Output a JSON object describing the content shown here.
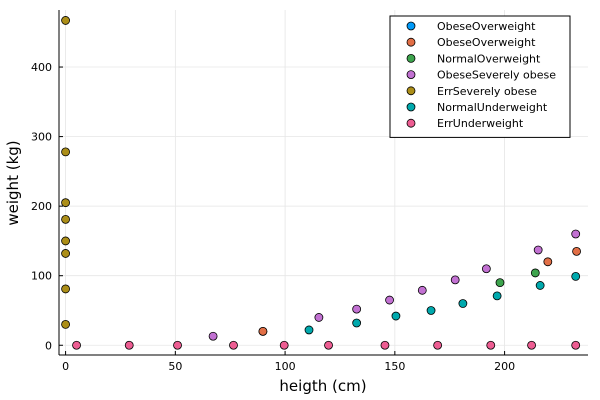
{
  "chart_data": {
    "type": "scatter",
    "title": "",
    "xlabel": "heigth (cm)",
    "ylabel": "weight (kg)",
    "xlim": [
      -3,
      238
    ],
    "ylim": [
      -14,
      482
    ],
    "xticks": [
      0,
      50,
      100,
      150,
      200
    ],
    "yticks": [
      0,
      100,
      200,
      300,
      400
    ],
    "grid": true,
    "legend_position": "top-right",
    "series": [
      {
        "name": "ObeseOverweight",
        "color": "#009af9",
        "points": [
          [
            89.9,
            20
          ]
        ]
      },
      {
        "name": "ObeseOverweight",
        "color": "#e26f46",
        "points": [
          [
            89.9,
            20
          ],
          [
            219.7,
            120
          ],
          [
            232.8,
            135
          ]
        ]
      },
      {
        "name": "NormalOverweight",
        "color": "#3da44d",
        "points": [
          [
            197.9,
            90
          ],
          [
            214.0,
            104
          ]
        ]
      },
      {
        "name": "ObeseSeverely obese",
        "color": "#c271d2",
        "points": [
          [
            67.2,
            13
          ],
          [
            115.4,
            40
          ],
          [
            132.6,
            52
          ],
          [
            147.6,
            65
          ],
          [
            162.5,
            79
          ],
          [
            177.5,
            94
          ],
          [
            191.7,
            110
          ],
          [
            215.3,
            137
          ],
          [
            232.4,
            160
          ]
        ]
      },
      {
        "name": "ErrSeverely obese",
        "color": "#ac8e18",
        "points": [
          [
            0,
            467
          ],
          [
            0,
            278
          ],
          [
            0,
            205
          ],
          [
            0,
            181
          ],
          [
            0,
            150
          ],
          [
            0,
            132
          ],
          [
            0,
            81
          ],
          [
            0,
            30
          ]
        ]
      },
      {
        "name": "NormalUnderweight",
        "color": "#00a9ad",
        "points": [
          [
            110.9,
            22
          ],
          [
            132.6,
            32
          ],
          [
            150.5,
            42
          ],
          [
            166.5,
            50
          ],
          [
            181.0,
            60
          ],
          [
            196.6,
            71
          ],
          [
            216.2,
            86
          ],
          [
            232.4,
            99
          ]
        ]
      },
      {
        "name": "ErrUnderweight",
        "color": "#ed5d92",
        "points": [
          [
            5,
            0
          ],
          [
            29,
            0
          ],
          [
            51,
            0
          ],
          [
            76.5,
            0
          ],
          [
            99.6,
            0
          ],
          [
            119.8,
            0
          ],
          [
            145.5,
            0
          ],
          [
            169.5,
            0
          ],
          [
            193.7,
            0
          ],
          [
            212.3,
            0
          ],
          [
            232.4,
            0
          ]
        ]
      }
    ]
  }
}
